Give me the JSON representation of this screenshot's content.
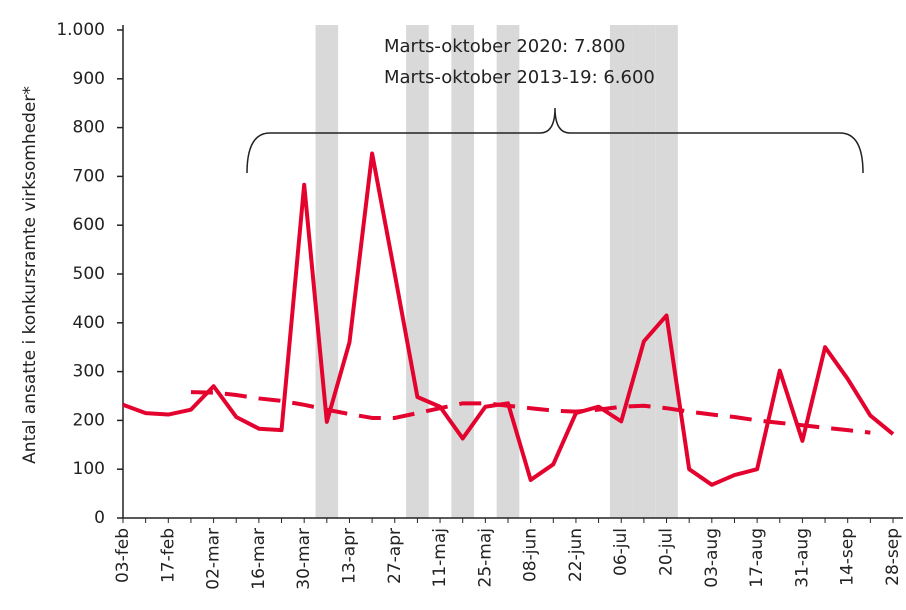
{
  "chart_data": {
    "type": "line",
    "y_label": "Antal ansatte i konkursramte virksomheder*",
    "annotations": [
      "Marts-oktober 2020: 7.800",
      "Marts-oktober 2013-19: 6.600"
    ],
    "categories": [
      "03-feb",
      null,
      "17-feb",
      null,
      "02-mar",
      null,
      "16-mar",
      null,
      "30-mar",
      null,
      "13-apr",
      null,
      "27-apr",
      null,
      "11-maj",
      null,
      "25-maj",
      null,
      "08-jun",
      null,
      "22-jun",
      null,
      "06-jul",
      null,
      "20-jul",
      null,
      "03-aug",
      null,
      "17-aug",
      null,
      "31-aug",
      null,
      "14-sep",
      null,
      "28-sep"
    ],
    "highlight_indices": [
      9,
      13,
      15,
      17,
      22,
      23,
      24
    ],
    "highlight_color": "#d9d9d9",
    "series": [
      {
        "color": "#e4032e",
        "dashed": false,
        "values": [
          232,
          215,
          212,
          222,
          270,
          207,
          183,
          180,
          683,
          197,
          360,
          747,
          500,
          248,
          228,
          163,
          228,
          235,
          78,
          110,
          215,
          228,
          198,
          362,
          415,
          100,
          68,
          88,
          100,
          302,
          158,
          350,
          285,
          210,
          172
        ]
      },
      {
        "color": "#e4032e",
        "dashed": true,
        "values": [
          null,
          null,
          null,
          258,
          257,
          252,
          245,
          240,
          232,
          222,
          213,
          205,
          205,
          215,
          225,
          235,
          235,
          230,
          225,
          220,
          218,
          222,
          228,
          230,
          225,
          218,
          212,
          207,
          200,
          195,
          190,
          185,
          180,
          175,
          null
        ]
      }
    ],
    "ylim": [
      0,
      1000
    ],
    "yticks": [
      0,
      100,
      200,
      300,
      400,
      500,
      600,
      700,
      800,
      900,
      {
        "value": 1000,
        "label": "1.000"
      }
    ]
  }
}
